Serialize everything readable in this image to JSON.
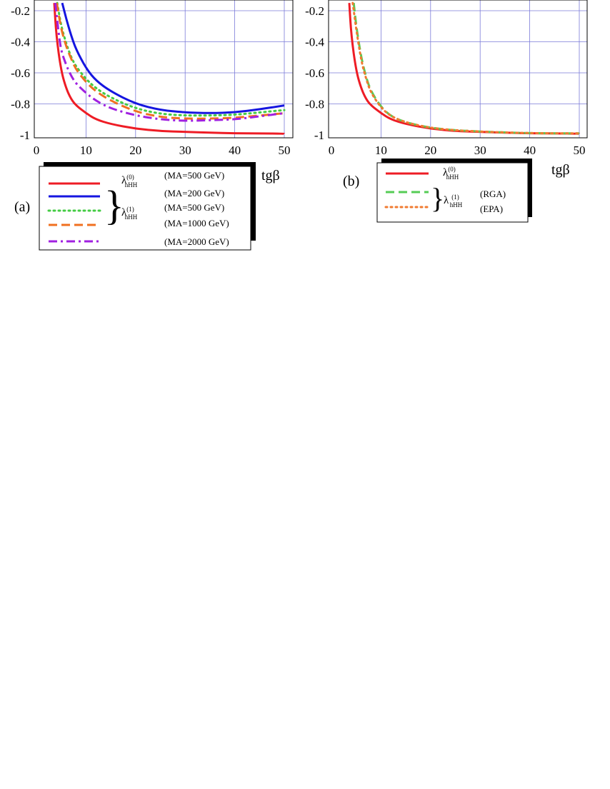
{
  "chart_data": [
    {
      "type": "line",
      "panel_label": "(a)",
      "xlabel": "tgβ",
      "ylabel": "",
      "xlim": [
        0,
        51
      ],
      "ylim": [
        -1.02,
        -0.15
      ],
      "xticks": [
        "0",
        "10",
        "20",
        "30",
        "40",
        "50"
      ],
      "yticks": [
        "-0.2",
        "-0.4",
        "-0.6",
        "-0.8",
        "-1"
      ],
      "grid": true,
      "legend_position": "below",
      "legend": {
        "lambda0": "λ",
        "lambda0_sup": "(0)",
        "lambda0_sub": "hHH",
        "lambda1": "λ",
        "lambda1_sup": "(1)",
        "lambda1_sub": "hHH",
        "brace": "}",
        "entries": [
          "(MA=500 GeV)",
          "(MA=200 GeV)",
          "(MA=500 GeV)",
          "(MA=1000 GeV)",
          "(MA=2000 GeV)"
        ]
      },
      "series": [
        {
          "name": "(MA=500 GeV)",
          "color": "#ee1c25",
          "dash": "solid",
          "x": [
            3.6,
            4,
            5,
            6,
            7,
            8,
            10,
            12,
            15,
            20,
            25,
            30,
            35,
            40,
            45,
            50
          ],
          "y": [
            -0.15,
            -0.36,
            -0.59,
            -0.7,
            -0.77,
            -0.81,
            -0.86,
            -0.9,
            -0.93,
            -0.96,
            -0.975,
            -0.98,
            -0.985,
            -0.99,
            -0.99,
            -0.992
          ]
        },
        {
          "name": "(MA=200 GeV)",
          "color": "#1515e0",
          "dash": "solid",
          "x": [
            5.2,
            6,
            7,
            8,
            10,
            12,
            15,
            20,
            25,
            30,
            35,
            40,
            45,
            50
          ],
          "y": [
            -0.15,
            -0.25,
            -0.36,
            -0.45,
            -0.57,
            -0.65,
            -0.72,
            -0.8,
            -0.84,
            -0.855,
            -0.86,
            -0.855,
            -0.835,
            -0.81
          ]
        },
        {
          "name": "(MA=500 GeV)",
          "color": "#44cc44",
          "dash": "dotted",
          "x": [
            4.2,
            5,
            6,
            7,
            8,
            10,
            12,
            15,
            20,
            25,
            30,
            35,
            40,
            45,
            50
          ],
          "y": [
            -0.15,
            -0.3,
            -0.41,
            -0.5,
            -0.56,
            -0.64,
            -0.7,
            -0.76,
            -0.83,
            -0.865,
            -0.875,
            -0.875,
            -0.87,
            -0.855,
            -0.84
          ]
        },
        {
          "name": "(MA=1000 GeV)",
          "color": "#f07020",
          "dash": "dashed",
          "x": [
            4.1,
            5,
            6,
            7,
            8,
            10,
            12,
            15,
            20,
            25,
            30,
            35,
            40,
            45,
            50
          ],
          "y": [
            -0.15,
            -0.32,
            -0.43,
            -0.51,
            -0.58,
            -0.66,
            -0.72,
            -0.78,
            -0.85,
            -0.885,
            -0.895,
            -0.895,
            -0.89,
            -0.875,
            -0.86
          ]
        },
        {
          "name": "(MA=2000 GeV)",
          "color": "#a020e0",
          "dash": "dashdot",
          "x": [
            3.8,
            4.5,
            5,
            6,
            7,
            8,
            10,
            12,
            15,
            20,
            25,
            30,
            35,
            40,
            45,
            50
          ],
          "y": [
            -0.15,
            -0.35,
            -0.46,
            -0.55,
            -0.62,
            -0.67,
            -0.73,
            -0.78,
            -0.83,
            -0.875,
            -0.9,
            -0.91,
            -0.905,
            -0.9,
            -0.88,
            -0.86
          ]
        }
      ]
    },
    {
      "type": "line",
      "panel_label": "(b)",
      "xlabel": "tgβ",
      "ylabel": "",
      "xlim": [
        0,
        51
      ],
      "ylim": [
        -1.02,
        -0.15
      ],
      "xticks": [
        "0",
        "10",
        "20",
        "30",
        "40",
        "50"
      ],
      "yticks": [
        "-0.2",
        "-0.4",
        "-0.6",
        "-0.8",
        "-1"
      ],
      "grid": true,
      "legend_position": "below",
      "legend": {
        "lambda0": "λ",
        "lambda0_sup": "(0)",
        "lambda0_sub": "hHH",
        "lambda1": "λ",
        "lambda1_sup": "(1)",
        "lambda1_sub": "hHH",
        "brace": "}",
        "entries": [
          "(RGA)",
          "(EPA)"
        ]
      },
      "series": [
        {
          "name": "λhHH(0)",
          "color": "#ee1c25",
          "dash": "solid",
          "x": [
            3.6,
            4,
            5,
            6,
            7,
            8,
            10,
            12,
            15,
            20,
            25,
            30,
            35,
            40,
            45,
            50
          ],
          "y": [
            -0.15,
            -0.36,
            -0.59,
            -0.7,
            -0.77,
            -0.81,
            -0.86,
            -0.9,
            -0.93,
            -0.96,
            -0.975,
            -0.98,
            -0.985,
            -0.99,
            -0.99,
            -0.992
          ]
        },
        {
          "name": "(RGA)",
          "color": "#55cc55",
          "dash": "dashed",
          "x": [
            4.5,
            5,
            6,
            7,
            8,
            10,
            12,
            15,
            20,
            25,
            30,
            35,
            40,
            45,
            50
          ],
          "y": [
            -0.15,
            -0.3,
            -0.5,
            -0.63,
            -0.72,
            -0.82,
            -0.88,
            -0.92,
            -0.955,
            -0.97,
            -0.978,
            -0.984,
            -0.988,
            -0.99,
            -0.99
          ]
        },
        {
          "name": "(EPA)",
          "color": "#f07a30",
          "dash": "dotted",
          "x": [
            4.3,
            5,
            6,
            7,
            8,
            10,
            12,
            15,
            20,
            25,
            30,
            35,
            40,
            45,
            50
          ],
          "y": [
            -0.15,
            -0.32,
            -0.52,
            -0.64,
            -0.73,
            -0.825,
            -0.88,
            -0.92,
            -0.955,
            -0.97,
            -0.978,
            -0.984,
            -0.988,
            -0.99,
            -0.99
          ]
        }
      ]
    }
  ]
}
